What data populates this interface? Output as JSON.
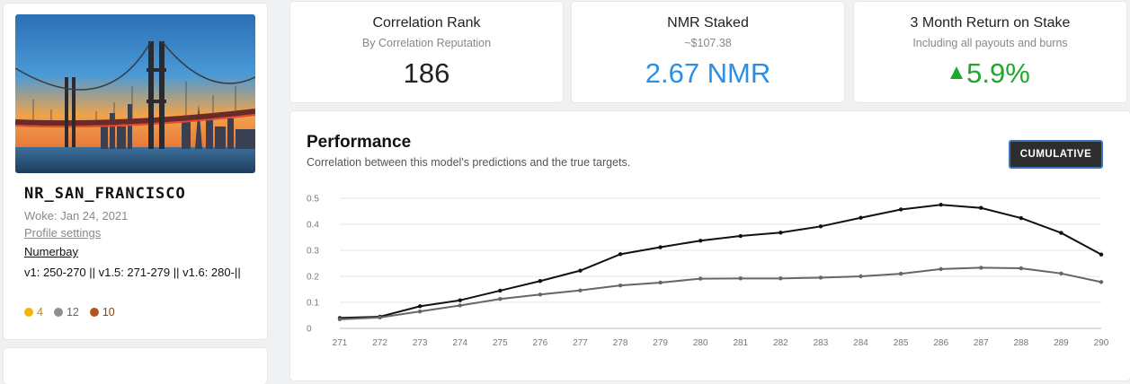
{
  "profile": {
    "username": "NR_SAN_FRANCISCO",
    "woke": "Woke: Jan 24, 2021",
    "profile_settings": "Profile settings",
    "numerbay": "Numerbay",
    "versions": "v1: 250-270 || v1.5: 271-279 || v1.6: 280-||",
    "medals": [
      {
        "count": "4",
        "color": "#f2b705",
        "text_color": "#d08a00"
      },
      {
        "count": "12",
        "color": "#8f8f8f",
        "text_color": "#666666"
      },
      {
        "count": "10",
        "color": "#b5551e",
        "text_color": "#8a3e12"
      }
    ]
  },
  "stats": {
    "rank": {
      "title": "Correlation Rank",
      "subtitle": "By Correlation Reputation",
      "value": "186"
    },
    "staked": {
      "title": "NMR Staked",
      "subtitle": "~$107.38",
      "value": "2.67 NMR"
    },
    "return": {
      "title": "3 Month Return on Stake",
      "subtitle": "Including all payouts and burns",
      "value": "5.9%",
      "direction": "up"
    }
  },
  "performance": {
    "title": "Performance",
    "subtitle": "Correlation between this model's predictions and the true targets.",
    "button_label": "CUMULATIVE"
  },
  "chart_data": {
    "type": "line",
    "x": [
      271,
      272,
      273,
      274,
      275,
      276,
      277,
      278,
      279,
      280,
      281,
      282,
      283,
      284,
      285,
      286,
      287,
      288,
      289,
      290
    ],
    "ylim": [
      0,
      0.5
    ],
    "yticks": [
      0,
      0.1,
      0.2,
      0.3,
      0.4,
      0.5
    ],
    "grid": true,
    "series": [
      {
        "color": "#111111",
        "values": [
          0.04,
          0.045,
          0.085,
          0.108,
          0.145,
          0.182,
          0.222,
          0.285,
          0.312,
          0.337,
          0.355,
          0.368,
          0.392,
          0.425,
          0.457,
          0.475,
          0.463,
          0.424,
          0.367,
          0.284
        ]
      },
      {
        "color": "#666666",
        "values": [
          0.035,
          0.042,
          0.065,
          0.088,
          0.113,
          0.13,
          0.146,
          0.165,
          0.176,
          0.191,
          0.192,
          0.192,
          0.195,
          0.2,
          0.21,
          0.228,
          0.233,
          0.231,
          0.211,
          0.178
        ]
      }
    ]
  }
}
